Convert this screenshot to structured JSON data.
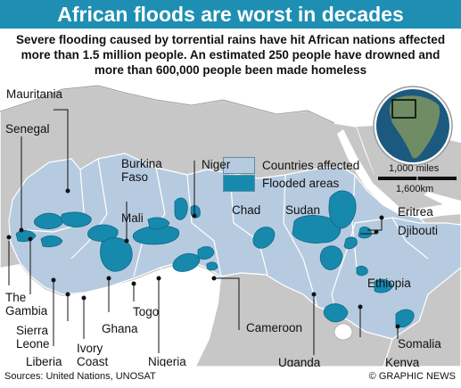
{
  "title": "African floods are worst in decades",
  "subtitle": "Severe flooding caused by torrential rains have hit African nations affected more than 1.5 million people. An estimated 250 people have drowned and more than 600,000 people been made homeless",
  "legend": {
    "affected_label": "Countries affected",
    "flooded_label": "Flooded areas",
    "affected_color": "#b7cbe0",
    "flooded_color": "#1789ad"
  },
  "scale": {
    "miles": "1,000 miles",
    "km": "1,600km"
  },
  "countries": {
    "mauritania": "Mauritania",
    "senegal": "Senegal",
    "burkina_faso": "Burkina\nFaso",
    "niger": "Niger",
    "mali": "Mali",
    "chad": "Chad",
    "sudan": "Sudan",
    "eritrea": "Eritrea",
    "djibouti": "Djibouti",
    "ethiopia": "Ethiopia",
    "the_gambia": "The\nGambia",
    "sierra_leone": "Sierra\nLeone",
    "liberia": "Liberia",
    "ivory_coast": "Ivory\nCoast",
    "ghana": "Ghana",
    "togo": "Togo",
    "nigeria": "Nigeria",
    "cameroon": "Cameroon",
    "uganda": "Uganda",
    "kenya": "Kenya",
    "somalia": "Somalia"
  },
  "footer": {
    "sources": "Sources: United Nations, UNOSAT",
    "credit": "© GRAPHIC NEWS"
  }
}
